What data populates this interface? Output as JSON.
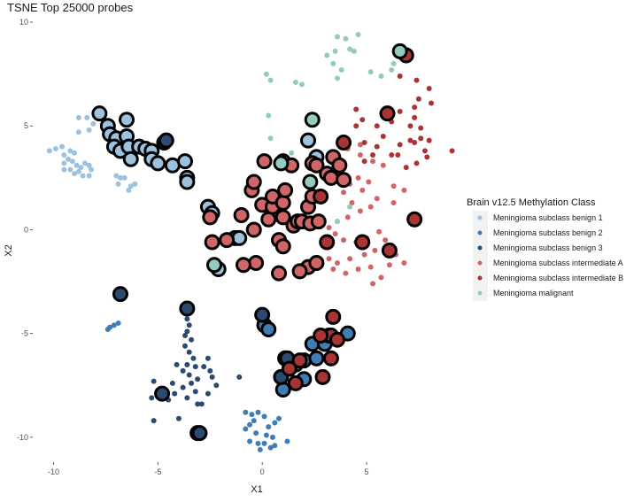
{
  "chart_data": {
    "type": "scatter",
    "title": "TSNE Top 25000 probes",
    "xlabel": "X1",
    "ylabel": "X2",
    "xlim": [
      -11,
      9.5
    ],
    "ylim": [
      -11.2,
      10.3
    ],
    "xticks": [
      -10,
      -5,
      0,
      5
    ],
    "yticks": [
      -10,
      -5,
      0,
      5,
      10
    ],
    "grid": false,
    "legend": {
      "title": "Brain v12.5 Methylation Class",
      "position": "right"
    },
    "series": [
      {
        "name": "Meningioma subclass benign 1",
        "color": "#9cc2dd",
        "small": [
          [
            -9.6,
            4
          ],
          [
            -9.9,
            3.9
          ],
          [
            -10.2,
            3.8
          ],
          [
            -9.5,
            3.6
          ],
          [
            -9.2,
            3.8
          ],
          [
            -9,
            3.7
          ],
          [
            -9.3,
            3.4
          ],
          [
            -9.5,
            3.2
          ],
          [
            -9.1,
            3.3
          ],
          [
            -8.9,
            3.1
          ],
          [
            -8.5,
            3.2
          ],
          [
            -8.7,
            3
          ],
          [
            -9.2,
            2.9
          ],
          [
            -9.5,
            2.9
          ],
          [
            -8.8,
            2.8
          ],
          [
            -8.6,
            2.6
          ],
          [
            -8.3,
            2.6
          ],
          [
            -9,
            2.7
          ],
          [
            -8.3,
            3.1
          ],
          [
            -8.8,
            4.7
          ],
          [
            -8.3,
            4.8
          ],
          [
            -8.4,
            5.4
          ],
          [
            -8.8,
            5.4
          ],
          [
            -8.1,
            5.1
          ],
          [
            -8.2,
            2.9
          ],
          [
            -7,
            2.6
          ],
          [
            -6.8,
            2.5
          ],
          [
            -6.9,
            2.2
          ],
          [
            -6.3,
            2.1
          ],
          [
            -6.1,
            2.2
          ],
          [
            -6.4,
            1.9
          ],
          [
            -6.6,
            2.5
          ]
        ],
        "large": [
          [
            -7.8,
            5.6
          ],
          [
            -7.4,
            5
          ],
          [
            -7.3,
            4.6
          ],
          [
            -7,
            4.4
          ],
          [
            -7.1,
            4
          ],
          [
            -6.8,
            3.8
          ],
          [
            -6.5,
            5.3
          ],
          [
            -6.5,
            4.5
          ],
          [
            -6.4,
            4
          ],
          [
            -6.3,
            3.4
          ],
          [
            -5.9,
            4
          ],
          [
            -5.6,
            3.9
          ],
          [
            -5.3,
            3.8
          ],
          [
            -5.3,
            3.4
          ],
          [
            -5,
            3.2
          ],
          [
            -4.3,
            3.1
          ],
          [
            -3.7,
            3.3
          ],
          [
            -3.6,
            2.5
          ],
          [
            -3.6,
            2.3
          ],
          [
            -2.6,
            1.1
          ],
          [
            -2.4,
            0.8
          ],
          [
            -1.3,
            -0.4
          ],
          [
            -1.1,
            -0.4
          ],
          [
            -2.1,
            -1.9
          ],
          [
            2.2,
            4.3
          ],
          [
            2.6,
            3.5
          ]
        ]
      },
      {
        "name": "Meningioma subclass benign 2",
        "color": "#3f7db6",
        "small": [
          [
            -6.9,
            -4.5
          ],
          [
            -7.1,
            -4.6
          ],
          [
            -7.3,
            -4.7
          ],
          [
            -7.4,
            -4.8
          ],
          [
            -0.8,
            -8.8
          ],
          [
            -0.5,
            -8.9
          ],
          [
            -0.2,
            -8.8
          ],
          [
            0.1,
            -9
          ],
          [
            -0.4,
            -9.2
          ],
          [
            -0.6,
            -9.4
          ],
          [
            0.3,
            -9.5
          ],
          [
            0.6,
            -9.3
          ],
          [
            -0.8,
            -9.6
          ],
          [
            -0.3,
            -9.8
          ],
          [
            0.2,
            -9.9
          ],
          [
            0.5,
            -10
          ],
          [
            -0.6,
            -10.2
          ],
          [
            -0.2,
            -10.3
          ],
          [
            0.6,
            -10.4
          ],
          [
            -0.1,
            -10.6
          ],
          [
            0.8,
            -9.1
          ],
          [
            1.2,
            -10.2
          ],
          [
            0.4,
            -10.5
          ],
          [
            0.1,
            -10.3
          ]
        ],
        "large": [
          [
            0.1,
            -4.6
          ],
          [
            0.3,
            -4.8
          ],
          [
            1.1,
            -6.2
          ],
          [
            1.6,
            -6.5
          ],
          [
            2,
            -6.3
          ],
          [
            2.4,
            -5.5
          ],
          [
            2.6,
            -6.2
          ],
          [
            3,
            -5.5
          ],
          [
            3.2,
            -5.1
          ],
          [
            4.1,
            -5
          ],
          [
            2,
            -7.2
          ],
          [
            1,
            -7.7
          ]
        ]
      },
      {
        "name": "Meningioma subclass benign 3",
        "color": "#2c4a70",
        "small": [
          [
            -3.6,
            -4.3
          ],
          [
            -3.5,
            -4.6
          ],
          [
            -3.6,
            -4.9
          ],
          [
            -3.4,
            -5.3
          ],
          [
            -3.7,
            -5.6
          ],
          [
            -3.5,
            -5.9
          ],
          [
            -3.3,
            -6.2
          ],
          [
            -3.6,
            -6.5
          ],
          [
            -3.2,
            -6.6
          ],
          [
            -3.8,
            -6.8
          ],
          [
            -3.5,
            -7
          ],
          [
            -3.1,
            -7.2
          ],
          [
            -3.4,
            -7.4
          ],
          [
            -3.8,
            -7.6
          ],
          [
            -3.2,
            -7.8
          ],
          [
            -3.6,
            -8.1
          ],
          [
            -3.1,
            -8.4
          ],
          [
            -2.8,
            -6.6
          ],
          [
            -2.6,
            -6.2
          ],
          [
            -2.5,
            -6.8
          ],
          [
            -2.4,
            -7.1
          ],
          [
            -2.2,
            -7.5
          ],
          [
            -2.6,
            -7.9
          ],
          [
            -2.9,
            -8.4
          ],
          [
            -4.1,
            -6.5
          ],
          [
            -4.3,
            -7.4
          ],
          [
            -4.5,
            -8.2
          ],
          [
            -4.2,
            -7.9
          ],
          [
            -5.2,
            -7.3
          ],
          [
            -5.3,
            -8.1
          ],
          [
            -5.2,
            -9.2
          ],
          [
            -4,
            -9.1
          ],
          [
            -1.1,
            -7.1
          ],
          [
            -3.7,
            -5.1
          ]
        ],
        "large": [
          [
            -4.7,
            4.2
          ],
          [
            -4.6,
            4.3
          ],
          [
            -6.8,
            -3.1
          ],
          [
            -3.6,
            -3.8
          ],
          [
            -4.8,
            -7.9
          ],
          [
            -3.1,
            -9.8
          ],
          [
            -3,
            -9.8
          ],
          [
            0,
            -4.1
          ],
          [
            0.9,
            -7.1
          ],
          [
            1.2,
            -6.2
          ]
        ]
      },
      {
        "name": "Meningioma subclass intermediate A",
        "color": "#cf6566",
        "small": [
          [
            3.7,
            2.7
          ],
          [
            4.2,
            2.2
          ],
          [
            3.9,
            1.8
          ],
          [
            4.6,
            2.5
          ],
          [
            5.1,
            2.3
          ],
          [
            4.8,
            1.9
          ],
          [
            5.5,
            1.5
          ],
          [
            5.2,
            1.1
          ],
          [
            4.7,
            0.9
          ],
          [
            4.3,
            1.3
          ],
          [
            4.1,
            0.6
          ],
          [
            3.6,
            0.4
          ],
          [
            3.2,
            0.1
          ],
          [
            3.5,
            -0.2
          ],
          [
            3.9,
            -0.5
          ],
          [
            4.5,
            -0.6
          ],
          [
            5,
            -0.4
          ],
          [
            5.6,
            -0.1
          ],
          [
            5.9,
            -0.5
          ],
          [
            5.4,
            -1
          ],
          [
            4.9,
            -1.2
          ],
          [
            4.2,
            -1.4
          ],
          [
            3.6,
            -1.6
          ],
          [
            3.2,
            -1.4
          ],
          [
            3.4,
            -1.9
          ],
          [
            4,
            -2.1
          ],
          [
            4.6,
            -1.9
          ],
          [
            5.2,
            -1.8
          ],
          [
            5.3,
            -2.6
          ],
          [
            5.7,
            -2.3
          ],
          [
            6.1,
            -1.7
          ],
          [
            6.4,
            -1.2
          ],
          [
            6.8,
            -1.6
          ],
          [
            6.3,
            1.3
          ],
          [
            6.8,
            1.9
          ],
          [
            5.8,
            3.1
          ],
          [
            5.3,
            3.3
          ],
          [
            4.7,
            3.6
          ],
          [
            4.1,
            3.9
          ],
          [
            4.7,
            4.1
          ],
          [
            6.3,
            2.1
          ]
        ],
        "large": [
          [
            -2.5,
            0.6
          ],
          [
            -2.4,
            -0.6
          ],
          [
            -1.7,
            -0.5
          ],
          [
            -1,
            0.7
          ],
          [
            -0.4,
            0
          ],
          [
            -0.3,
            -1.6
          ],
          [
            -0.9,
            -1.7
          ],
          [
            0,
            1.2
          ],
          [
            0.3,
            0.5
          ],
          [
            0.5,
            1.1
          ],
          [
            0.5,
            1.6
          ],
          [
            0.8,
            -0.5
          ],
          [
            1,
            0.6
          ],
          [
            1,
            1.3
          ],
          [
            1.1,
            1.9
          ],
          [
            1.5,
            0.2
          ],
          [
            1.7,
            0.4
          ],
          [
            1.9,
            0.4
          ],
          [
            2.3,
            0.3
          ],
          [
            2.7,
            0.4
          ],
          [
            2.2,
            1.1
          ],
          [
            2.4,
            1.6
          ],
          [
            2.2,
            -1.8
          ],
          [
            2.6,
            -1.6
          ],
          [
            1,
            -0.8
          ],
          [
            1.8,
            -2
          ],
          [
            0.8,
            -2.1
          ],
          [
            2.4,
            3.2
          ],
          [
            2.6,
            3.1
          ],
          [
            3.1,
            2.7
          ],
          [
            3.4,
            3.5
          ],
          [
            3.7,
            3.1
          ],
          [
            3.3,
            2.5
          ],
          [
            3.9,
            2.4
          ],
          [
            0.1,
            3.3
          ],
          [
            1,
            3.3
          ],
          [
            -0.5,
            1.9
          ],
          [
            -0.4,
            2.3
          ],
          [
            1.4,
            3.1
          ]
        ]
      },
      {
        "name": "Meningioma subclass intermediate B",
        "color": "#a83434",
        "small": [
          [
            6.6,
            7.4
          ],
          [
            7.4,
            7.2
          ],
          [
            8,
            6.8
          ],
          [
            7.5,
            6.3
          ],
          [
            8.1,
            6.1
          ],
          [
            7.3,
            5.9
          ],
          [
            6.6,
            5.7
          ],
          [
            5.8,
            5.6
          ],
          [
            4.5,
            5.8
          ],
          [
            4.8,
            5.3
          ],
          [
            5.5,
            5
          ],
          [
            6.2,
            5.2
          ],
          [
            7.1,
            5
          ],
          [
            7.6,
            4.9
          ],
          [
            8,
            4.3
          ],
          [
            7.6,
            4.4
          ],
          [
            7.3,
            4.2
          ],
          [
            7.1,
            4.3
          ],
          [
            6.6,
            4.1
          ],
          [
            6.2,
            3.6
          ],
          [
            5.5,
            4
          ],
          [
            4.9,
            4.2
          ],
          [
            5.8,
            4.5
          ],
          [
            7.8,
            3.8
          ],
          [
            7.9,
            3.5
          ],
          [
            7.4,
            3.2
          ],
          [
            6.9,
            3
          ],
          [
            9.1,
            3.8
          ],
          [
            5.3,
            3.6
          ],
          [
            4.9,
            3.3
          ],
          [
            4.5,
            5
          ],
          [
            7.3,
            5.4
          ],
          [
            6.5,
            3.6
          ]
        ],
        "large": [
          [
            6.9,
            8.4
          ],
          [
            6,
            5.6
          ],
          [
            3.9,
            4.2
          ],
          [
            7.3,
            0.5
          ],
          [
            6.1,
            -1
          ],
          [
            4.8,
            -0.6
          ],
          [
            3.1,
            -0.6
          ],
          [
            3.4,
            -4.2
          ],
          [
            3.3,
            -5.1
          ],
          [
            2.9,
            -7.1
          ],
          [
            1.3,
            -6.7
          ],
          [
            3.3,
            -6.2
          ],
          [
            1.8,
            -6.3
          ],
          [
            2.8,
            -5.1
          ],
          [
            3.6,
            -5.3
          ],
          [
            1.6,
            -7.4
          ],
          [
            2.8,
            1.6
          ]
        ]
      },
      {
        "name": "Meningioma malignant",
        "color": "#93cbbf",
        "small": [
          [
            3.6,
            9.3
          ],
          [
            4,
            9.2
          ],
          [
            4.6,
            9.4
          ],
          [
            3.5,
            8.6
          ],
          [
            4.2,
            8.7
          ],
          [
            4.4,
            8.6
          ],
          [
            3.1,
            8.4
          ],
          [
            3.4,
            8
          ],
          [
            3.8,
            7.7
          ],
          [
            3.6,
            7.3
          ],
          [
            5.2,
            7.6
          ],
          [
            5.7,
            7.4
          ],
          [
            6.2,
            7.7
          ],
          [
            6.3,
            8
          ],
          [
            0.2,
            7.5
          ],
          [
            0.4,
            7.2
          ],
          [
            1.6,
            7.1
          ],
          [
            1.9,
            7
          ],
          [
            0.3,
            5.5
          ],
          [
            0.4,
            4.4
          ],
          [
            1.4,
            3.7
          ],
          [
            3.6,
            0.4
          ],
          [
            4.2,
            1.1
          ]
        ],
        "large": [
          [
            6.6,
            8.6
          ],
          [
            2.4,
            5.3
          ],
          [
            -2.3,
            -1.7
          ],
          [
            2.3,
            2.3
          ],
          [
            0.9,
            3.2
          ]
        ]
      }
    ]
  }
}
